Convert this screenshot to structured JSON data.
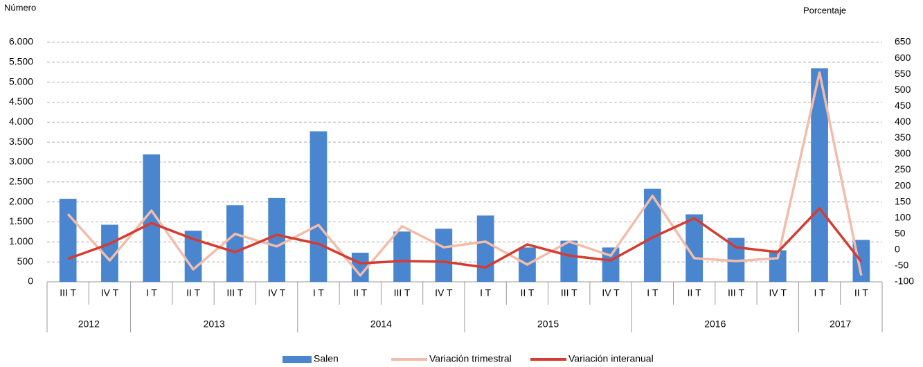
{
  "chart_data": {
    "type": "bar_line",
    "y_label": "Número",
    "y2_label": "Porcentaje",
    "year_groups": [
      {
        "label": "2012",
        "quarters": [
          "III T",
          "IV T"
        ]
      },
      {
        "label": "2013",
        "quarters": [
          "I T",
          "II T",
          "III T",
          "IV T"
        ]
      },
      {
        "label": "2014",
        "quarters": [
          "I T",
          "II T",
          "III T",
          "IV T"
        ]
      },
      {
        "label": "2015",
        "quarters": [
          "I T",
          "II T",
          "III T",
          "IV T"
        ]
      },
      {
        "label": "2016",
        "quarters": [
          "I T",
          "II T",
          "III T",
          "IV T"
        ]
      },
      {
        "label": "2017",
        "quarters": [
          "I T",
          "II T"
        ]
      }
    ],
    "series": [
      {
        "name": "Salen",
        "type": "bar",
        "color": "#4a86d0",
        "axis": "y",
        "values": [
          2080,
          1430,
          3190,
          1280,
          1920,
          2100,
          3770,
          730,
          1260,
          1330,
          1660,
          860,
          1030,
          860,
          2330,
          1690,
          1100,
          790,
          5350,
          1050
        ]
      },
      {
        "name": "Variación trimestral",
        "type": "line",
        "color": "#f4bca8",
        "axis": "y2",
        "values": [
          112,
          -33,
          123,
          -61,
          50,
          11,
          78,
          -80,
          74,
          8,
          26,
          -46,
          26,
          -18,
          169,
          -26,
          -35,
          -26,
          555,
          -80
        ]
      },
      {
        "name": "Variación interanual",
        "type": "line",
        "color": "#d63b2f",
        "axis": "y2",
        "values": [
          -28,
          19,
          84,
          34,
          -7,
          47,
          19,
          -42,
          -35,
          -37,
          -55,
          17,
          -18,
          -33,
          39,
          99,
          8,
          -7,
          130,
          -37
        ]
      }
    ],
    "ylim": [
      0,
      6000
    ],
    "yticks": [
      0,
      500,
      {
        "value": 1000,
        "label": "1.000"
      },
      {
        "value": 1500,
        "label": "1.500"
      },
      {
        "value": 2000,
        "label": "2.000"
      },
      {
        "value": 2500,
        "label": "2.500"
      },
      {
        "value": 3000,
        "label": "3.000"
      },
      {
        "value": 3500,
        "label": "3.500"
      },
      {
        "value": 4000,
        "label": "4.000"
      },
      {
        "value": 4500,
        "label": "4.500"
      },
      {
        "value": 5000,
        "label": "5.000"
      },
      {
        "value": 5500,
        "label": "5.500"
      },
      {
        "value": 6000,
        "label": "6.000"
      }
    ],
    "y2lim": [
      -100,
      650
    ],
    "y2ticks": [
      -100,
      -50,
      0,
      50,
      100,
      150,
      200,
      250,
      300,
      350,
      400,
      450,
      500,
      550,
      600,
      650
    ],
    "grid": true,
    "legend": "bottom"
  }
}
